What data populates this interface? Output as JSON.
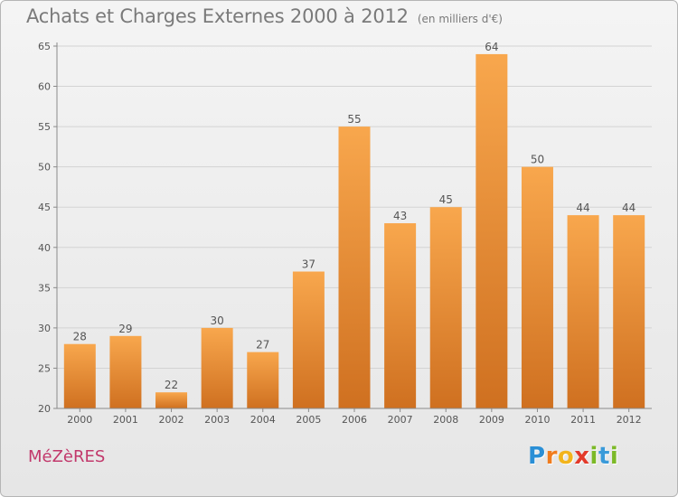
{
  "header": {
    "title": "Achats et Charges Externes 2000 à 2012",
    "subtitle": "(en milliers d'€)"
  },
  "footer": {
    "commune": "MéZèRES",
    "brand_letters": [
      "P",
      "r",
      "o",
      "x",
      "i",
      "t",
      "i"
    ],
    "brand_colors": [
      "#2a8fd6",
      "#f07c1e",
      "#f2b41c",
      "#e33a2a",
      "#7cb928",
      "#3a9ad9",
      "#7cb928"
    ]
  },
  "colors": {
    "bar_light": "#f8a74d",
    "bar_dark": "#cf7020",
    "grid": "#d3d3d3",
    "axis": "#8a8a8a",
    "text": "#555555"
  },
  "chart_data": {
    "type": "bar",
    "categories": [
      "2000",
      "2001",
      "2002",
      "2003",
      "2004",
      "2005",
      "2006",
      "2007",
      "2008",
      "2009",
      "2010",
      "2011",
      "2012"
    ],
    "values": [
      28,
      29,
      22,
      30,
      27,
      37,
      55,
      43,
      45,
      64,
      50,
      44,
      44
    ],
    "data_labels": [
      "28",
      "29",
      "22",
      "30",
      "27",
      "37",
      "55",
      "43",
      "45",
      "64",
      "50",
      "44",
      "44"
    ],
    "ylim": [
      20,
      65
    ],
    "yticks": [
      20,
      25,
      30,
      35,
      40,
      45,
      50,
      55,
      60,
      65
    ],
    "grid": true
  }
}
